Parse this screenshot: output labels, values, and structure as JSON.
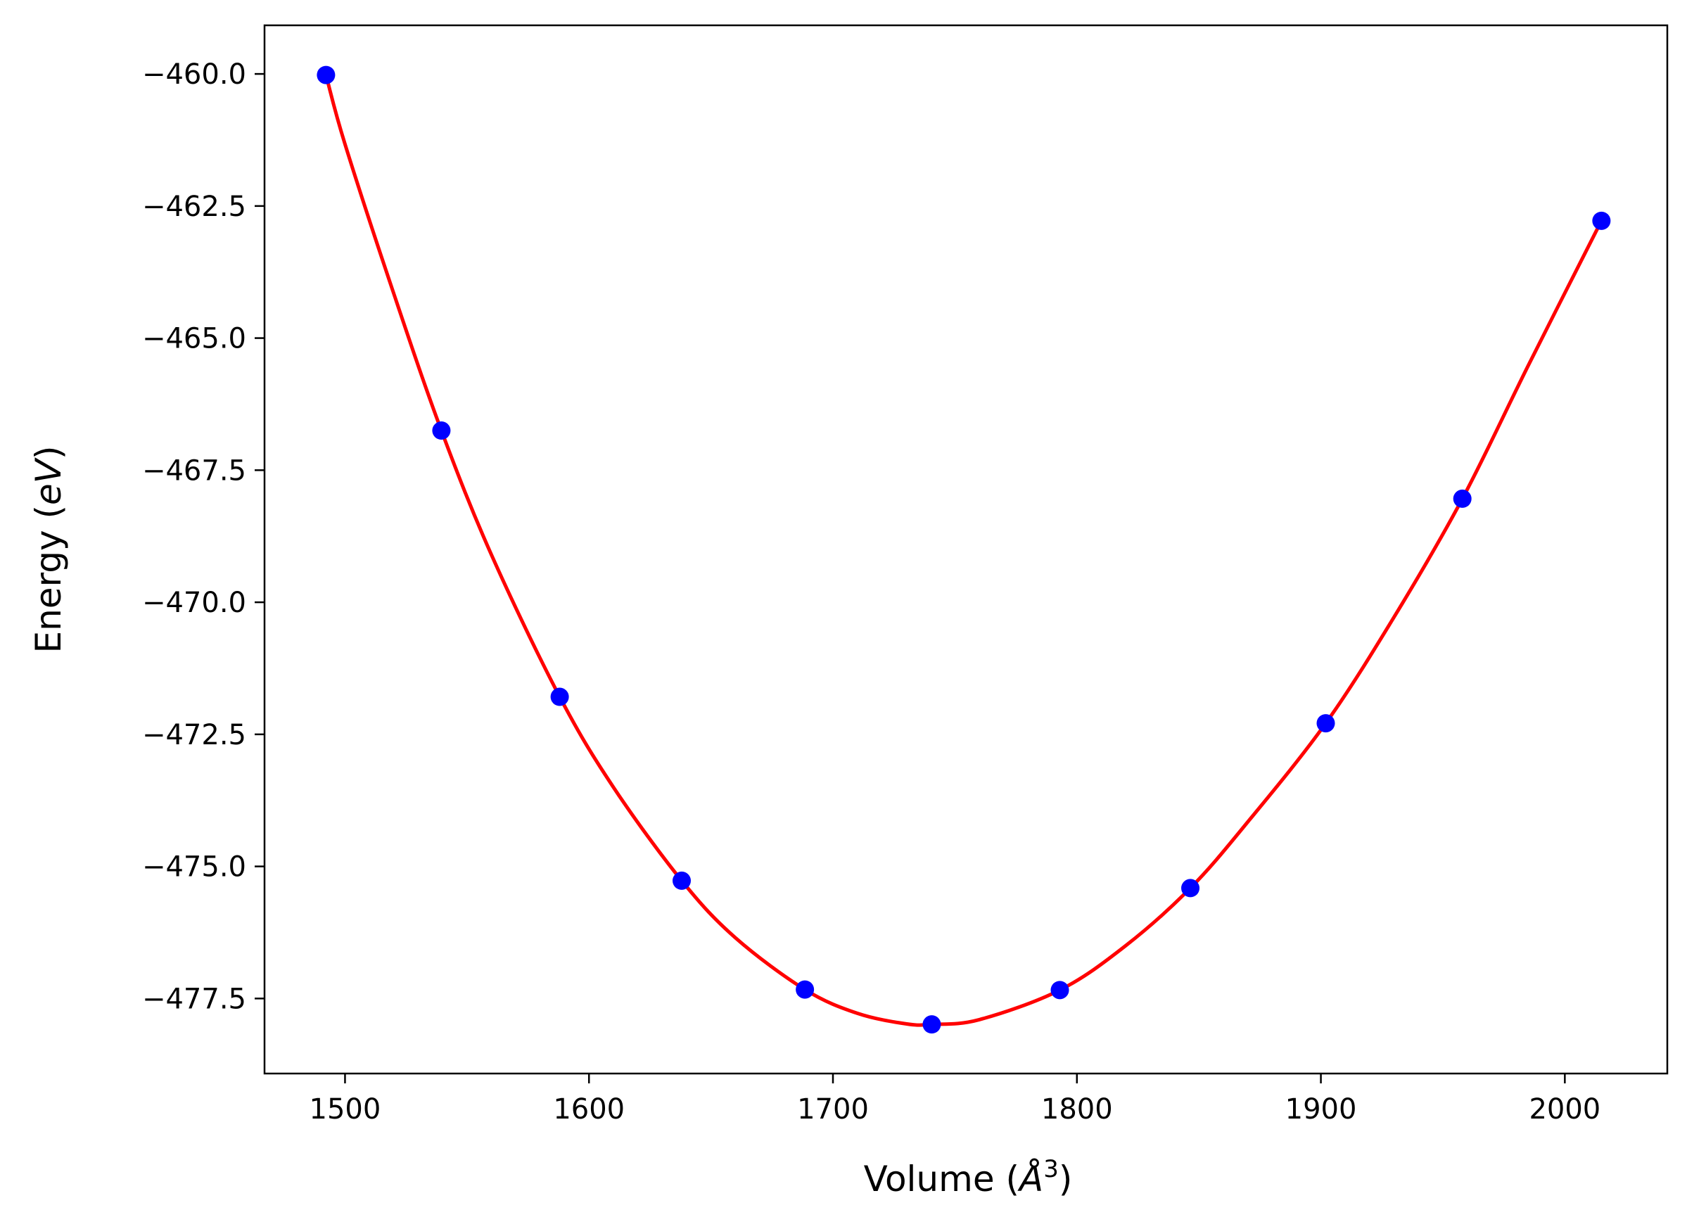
{
  "chart_data": {
    "type": "scatter",
    "title": "",
    "xlabel": "Volume (Å³)",
    "ylabel": "Energy (eV)",
    "xlabel_parts": {
      "prefix": "Volume (",
      "symbol": "Å",
      "sup": "3",
      "suffix": ")"
    },
    "ylabel_parts": {
      "prefix": "Energy (",
      "unit": "eV",
      "suffix": ")"
    },
    "xlim": [
      1467,
      2042
    ],
    "ylim": [
      -478.92,
      -459.08
    ],
    "x_ticks": [
      1500,
      1600,
      1700,
      1800,
      1900,
      2000
    ],
    "x_tick_labels": [
      "1500",
      "1600",
      "1700",
      "1800",
      "1900",
      "2000"
    ],
    "y_ticks": [
      -460.0,
      -462.5,
      -465.0,
      -467.5,
      -470.0,
      -472.5,
      -475.0,
      -477.5
    ],
    "y_tick_labels": [
      "−460.0",
      "−462.5",
      "−465.0",
      "−467.5",
      "−470.0",
      "−472.5",
      "−475.0",
      "−477.5"
    ],
    "grid": false,
    "legend": "none",
    "series": [
      {
        "kind": "points",
        "color": "#0000ff",
        "x": [
          1492.2,
          1539.5,
          1588.0,
          1638.0,
          1688.5,
          1740.5,
          1793.0,
          1846.5,
          1902.0,
          1958.0,
          2015.0
        ],
        "y": [
          -460.02,
          -466.75,
          -471.79,
          -475.27,
          -477.33,
          -477.99,
          -477.34,
          -475.41,
          -472.29,
          -468.04,
          -462.78
        ]
      },
      {
        "kind": "fit-curve",
        "color": "#ff0000",
        "x": [
          1492.2,
          1500.0,
          1520.0,
          1539.5,
          1560.0,
          1588.0,
          1610.0,
          1638.0,
          1660.0,
          1688.5,
          1710.0,
          1730.0,
          1740.5,
          1760.0,
          1793.0,
          1820.0,
          1846.5,
          1870.0,
          1902.0,
          1930.0,
          1958.0,
          1985.0,
          2015.0
        ],
        "y": [
          -460.02,
          -461.33,
          -464.16,
          -466.75,
          -469.1,
          -471.79,
          -473.5,
          -475.27,
          -476.35,
          -477.33,
          -477.78,
          -477.98,
          -477.99,
          -477.9,
          -477.34,
          -476.5,
          -475.41,
          -474.16,
          -472.29,
          -470.28,
          -468.04,
          -465.52,
          -462.78
        ]
      }
    ]
  }
}
